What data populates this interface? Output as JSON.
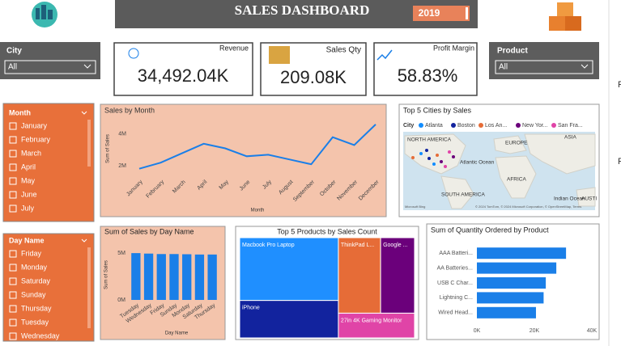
{
  "header": {
    "title": "SALES DASHBOARD",
    "year": "2019"
  },
  "filters": {
    "city": {
      "label": "City",
      "value": "All"
    },
    "product": {
      "label": "Product",
      "value": "All"
    },
    "month": {
      "label": "Month",
      "items": [
        "January",
        "February",
        "March",
        "April",
        "May",
        "June",
        "July"
      ]
    },
    "day": {
      "label": "Day Name",
      "items": [
        "Friday",
        "Monday",
        "Saturday",
        "Sunday",
        "Thursday",
        "Tuesday",
        "Wednesday"
      ]
    }
  },
  "kpis": [
    {
      "label": "Revenue",
      "value": "34,492.04K"
    },
    {
      "label": "Sales Qty",
      "value": "209.08K"
    },
    {
      "label": "Profit Margin",
      "value": "58.83%"
    }
  ],
  "side_pane": [
    "F",
    "F"
  ],
  "chart_data": [
    {
      "type": "line",
      "title": "Sales by Month",
      "x_label": "Month",
      "y_label": "Sum of Sales",
      "color": "#1a7fe8",
      "categories": [
        "January",
        "February",
        "March",
        "April",
        "May",
        "June",
        "July",
        "August",
        "September",
        "October",
        "November",
        "December"
      ],
      "values": [
        1820000,
        2200000,
        2800000,
        3390000,
        3100000,
        2600000,
        2700000,
        2400000,
        2100000,
        3800000,
        3300000,
        4600000
      ],
      "ylim": [
        1500000,
        4800000
      ],
      "yticks": [
        {
          "value": 2000000,
          "label": "2M"
        },
        {
          "value": 4000000,
          "label": "4M"
        }
      ]
    },
    {
      "type": "bar",
      "title": "Sum of Sales by Day Name",
      "x_label": "Day Name",
      "y_label": "Sum of Sales",
      "color": "#1a7fe8",
      "categories": [
        "Tuesday",
        "Wednesday",
        "Friday",
        "Sunday",
        "Monday",
        "Saturday",
        "Thursday"
      ],
      "values": [
        5000000,
        4950000,
        4900000,
        4900000,
        4880000,
        4850000,
        4850000
      ],
      "ylim": [
        0,
        5700000
      ],
      "yticks": [
        {
          "value": 0,
          "label": "0M"
        },
        {
          "value": 5000000,
          "label": "5M"
        }
      ]
    },
    {
      "type": "treemap",
      "title": "Top 5 Products by Sales Count",
      "categories": [
        "Macbook Pro Laptop",
        "iPhone",
        "ThinkPad L...",
        "Google ...",
        "27in 4K Gaming Monitor"
      ],
      "values": [
        8030000,
        4790000,
        4130000,
        3320000,
        2440000
      ],
      "colors": [
        "#1f8fff",
        "#12239e",
        "#e66c37",
        "#6b007b",
        "#e044a7"
      ]
    },
    {
      "type": "hbar",
      "title": "Sum of Quantity Ordered by Product",
      "color": "#1a7fe8",
      "categories": [
        "AAA Batteri...",
        "AA Batteries...",
        "USB C Char...",
        "Lightning C...",
        "Wired Head..."
      ],
      "values": [
        31017,
        27635,
        23975,
        23217,
        20557
      ],
      "xlim": [
        0,
        40000
      ],
      "xticks": [
        {
          "value": 0,
          "label": "0K"
        },
        {
          "value": 20000,
          "label": "20K"
        },
        {
          "value": 40000,
          "label": "40K"
        }
      ]
    },
    {
      "type": "map",
      "title": "Top 5 Cities by Sales",
      "legend_title": "City",
      "series": [
        {
          "name": "Atlanta",
          "color": "#118dff"
        },
        {
          "name": "Boston",
          "color": "#12239e"
        },
        {
          "name": "Los An...",
          "color": "#e66c37"
        },
        {
          "name": "New Yor...",
          "color": "#6b007b"
        },
        {
          "name": "San Fra...",
          "color": "#e044a7"
        }
      ],
      "labels": [
        "NORTH AMERICA",
        "EUROPE",
        "ASIA",
        "Atlantic Ocean",
        "AFRICA",
        "SOUTH AMERICA",
        "Indian Ocean",
        "AUSTI"
      ],
      "attribution": [
        "Microsoft Bing",
        "© 2024 TomTom, © 2024 Microsoft Corporation, © OpenStreetMap, Terms"
      ]
    }
  ]
}
